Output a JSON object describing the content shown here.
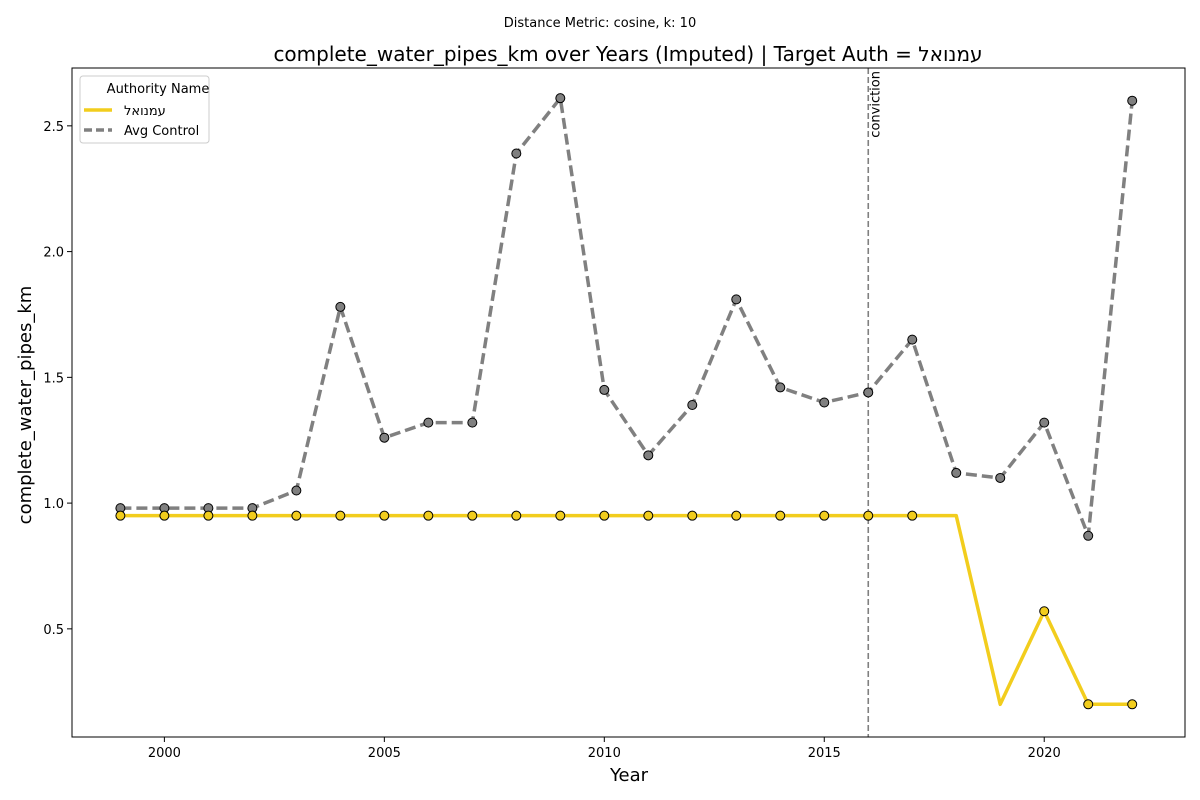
{
  "chart_data": {
    "type": "line",
    "suptitle": "Distance Metric: cosine, k: 10",
    "title": "complete_water_pipes_km over Years (Imputed) | Target Auth = עמנואל",
    "xlabel": "Year",
    "ylabel": "complete_water_pipes_km",
    "xlim": [
      1997.9,
      2023.2
    ],
    "ylim": [
      0.07,
      2.73
    ],
    "xticks": [
      2000,
      2005,
      2010,
      2015,
      2020
    ],
    "yticks": [
      0.5,
      1.0,
      1.5,
      2.0,
      2.5
    ],
    "ytick_labels": [
      "0.5",
      "1.0",
      "1.5",
      "2.0",
      "2.5"
    ],
    "legend": {
      "title": "Authority Name",
      "placement": "top-left"
    },
    "vline": {
      "x": 2016,
      "label": "conviction",
      "color": "#808080"
    },
    "series": [
      {
        "name": "עמנואל",
        "color": "#F2CD1D",
        "style": "solid",
        "x": [
          1999,
          2000,
          2001,
          2002,
          2003,
          2004,
          2005,
          2006,
          2007,
          2008,
          2009,
          2010,
          2011,
          2012,
          2013,
          2014,
          2015,
          2016,
          2017,
          2018,
          2019,
          2020,
          2021,
          2022
        ],
        "values": [
          0.95,
          0.95,
          0.95,
          0.95,
          0.95,
          0.95,
          0.95,
          0.95,
          0.95,
          0.95,
          0.95,
          0.95,
          0.95,
          0.95,
          0.95,
          0.95,
          0.95,
          0.95,
          0.95,
          0.95,
          0.2,
          0.57,
          0.2,
          0.2
        ],
        "markers": [
          true,
          true,
          true,
          true,
          true,
          true,
          true,
          true,
          true,
          true,
          true,
          true,
          true,
          true,
          true,
          true,
          true,
          true,
          true,
          false,
          false,
          true,
          true,
          true
        ]
      },
      {
        "name": "Avg Control",
        "color": "#808080",
        "style": "dashed",
        "x": [
          1999,
          2000,
          2001,
          2002,
          2003,
          2004,
          2005,
          2006,
          2007,
          2008,
          2009,
          2010,
          2011,
          2012,
          2013,
          2014,
          2015,
          2016,
          2017,
          2018,
          2019,
          2020,
          2021,
          2022
        ],
        "values": [
          0.98,
          0.98,
          0.98,
          0.98,
          1.05,
          1.78,
          1.26,
          1.32,
          1.32,
          2.39,
          2.61,
          1.45,
          1.19,
          1.39,
          1.81,
          1.46,
          1.4,
          1.44,
          1.65,
          1.12,
          1.1,
          1.32,
          0.87,
          2.6
        ],
        "markers": [
          true,
          true,
          true,
          true,
          true,
          true,
          true,
          true,
          true,
          true,
          true,
          true,
          true,
          true,
          true,
          true,
          true,
          true,
          true,
          true,
          true,
          true,
          true,
          true
        ]
      }
    ]
  }
}
